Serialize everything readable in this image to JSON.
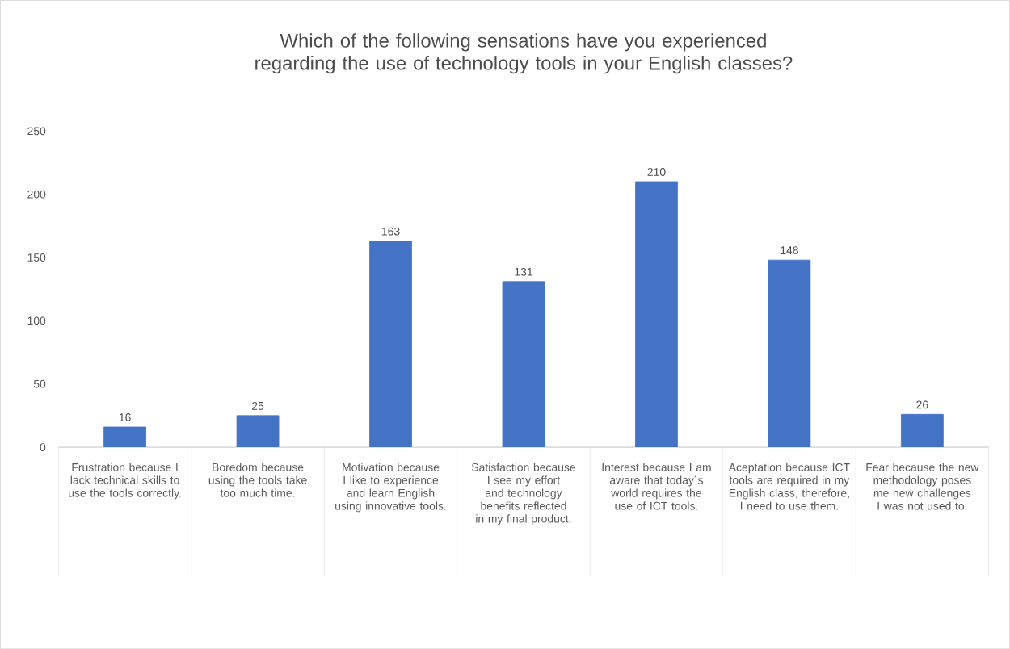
{
  "chart_data": {
    "type": "bar",
    "title": "Which of the following sensations have you experienced regarding the use of technology tools in your English classes?",
    "categories": [
      "Frustration because I lack technical skills to use the tools correctly.",
      "Boredom because using the tools take too much time.",
      "Motivation because I like to experience and learn English using innovative tools.",
      "Satisfaction because I see my effort and technology benefits reflected in my final product.",
      "Interest because I am aware that today´s world requires the use of ICT tools.",
      "Aceptation because ICT tools are required in my English class, therefore, I need to use them.",
      "Fear because the new methodology poses me new challenges I was not used to."
    ],
    "values": [
      16,
      25,
      163,
      131,
      210,
      148,
      26
    ],
    "color": "#4472c4",
    "ylim": [
      0,
      250
    ],
    "yticks": [
      0,
      50,
      100,
      150,
      200,
      250
    ],
    "data_labels": true
  }
}
